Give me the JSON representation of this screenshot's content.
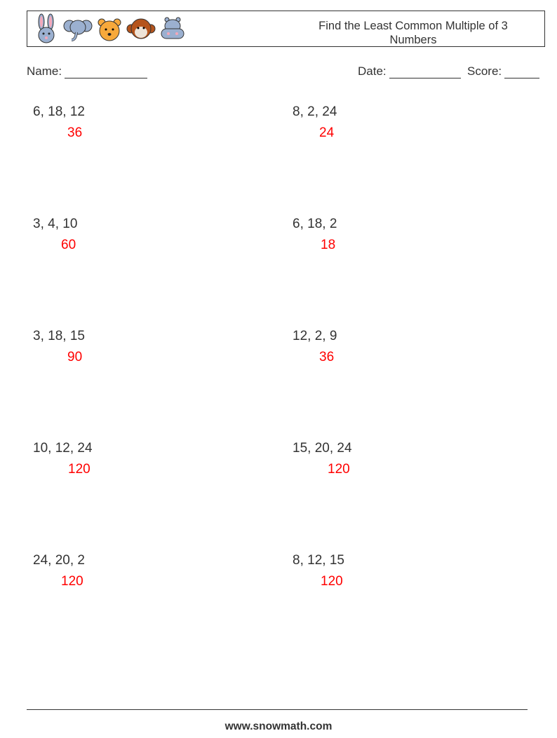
{
  "header": {
    "title": "Find the Least Common Multiple of 3 Numbers",
    "icons": [
      "rabbit-icon",
      "elephant-icon",
      "tiger-icon",
      "monkey-icon",
      "hippo-icon"
    ]
  },
  "fields": {
    "name_label": "Name:",
    "date_label": "Date:",
    "score_label": "Score:"
  },
  "problems": [
    {
      "numbers": "6, 18, 12",
      "answer": "36"
    },
    {
      "numbers": "8, 2, 24",
      "answer": "24"
    },
    {
      "numbers": "3, 4, 10",
      "answer": "60"
    },
    {
      "numbers": "6, 18, 2",
      "answer": "18"
    },
    {
      "numbers": "3, 18, 15",
      "answer": "90"
    },
    {
      "numbers": "12, 2, 9",
      "answer": "36"
    },
    {
      "numbers": "10, 12, 24",
      "answer": "120"
    },
    {
      "numbers": "15, 20, 24",
      "answer": "120"
    },
    {
      "numbers": "24, 20, 2",
      "answer": "120"
    },
    {
      "numbers": "8, 12, 15",
      "answer": "120"
    }
  ],
  "colors": {
    "answer": "#ff0000"
  },
  "footer": {
    "url": "www.snowmath.com"
  }
}
